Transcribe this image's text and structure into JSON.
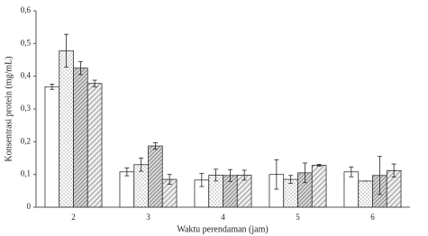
{
  "chart_data": {
    "type": "bar",
    "x_label": "Waktu perendaman (jam)",
    "y_label": "Konsentrasi protein (mg/mL)",
    "categories": [
      "2",
      "3",
      "4",
      "5",
      "6"
    ],
    "series": [
      {
        "color": "#ffffff",
        "pattern": "none",
        "values": [
          0.368,
          0.108,
          0.083,
          0.1,
          0.108
        ],
        "errors": [
          0.008,
          0.012,
          0.02,
          0.045,
          0.015
        ]
      },
      {
        "color": "#ffffff",
        "pattern": "dots",
        "values": [
          0.478,
          0.13,
          0.098,
          0.085,
          0.08
        ],
        "errors": [
          0.05,
          0.02,
          0.018,
          0.012,
          0.0
        ]
      },
      {
        "color": "#bfbfbf",
        "pattern": "hatch-dense",
        "values": [
          0.425,
          0.187,
          0.097,
          0.105,
          0.097
        ],
        "errors": [
          0.02,
          0.01,
          0.018,
          0.03,
          0.058
        ]
      },
      {
        "color": "#e0e0e0",
        "pattern": "hatch",
        "values": [
          0.378,
          0.085,
          0.098,
          0.128,
          0.112
        ],
        "errors": [
          0.01,
          0.015,
          0.015,
          0.003,
          0.02
        ]
      }
    ],
    "ylim": [
      0,
      0.6
    ],
    "yticks": [
      0,
      {
        "value": 0.1,
        "label": "0,1"
      },
      {
        "value": 0.2,
        "label": "0,2"
      },
      {
        "value": 0.3,
        "label": "0,3"
      },
      {
        "value": 0.4,
        "label": "0,4"
      },
      {
        "value": 0.5,
        "label": "0,5"
      },
      {
        "value": 0.6,
        "label": "0,6"
      }
    ],
    "grid": false
  }
}
